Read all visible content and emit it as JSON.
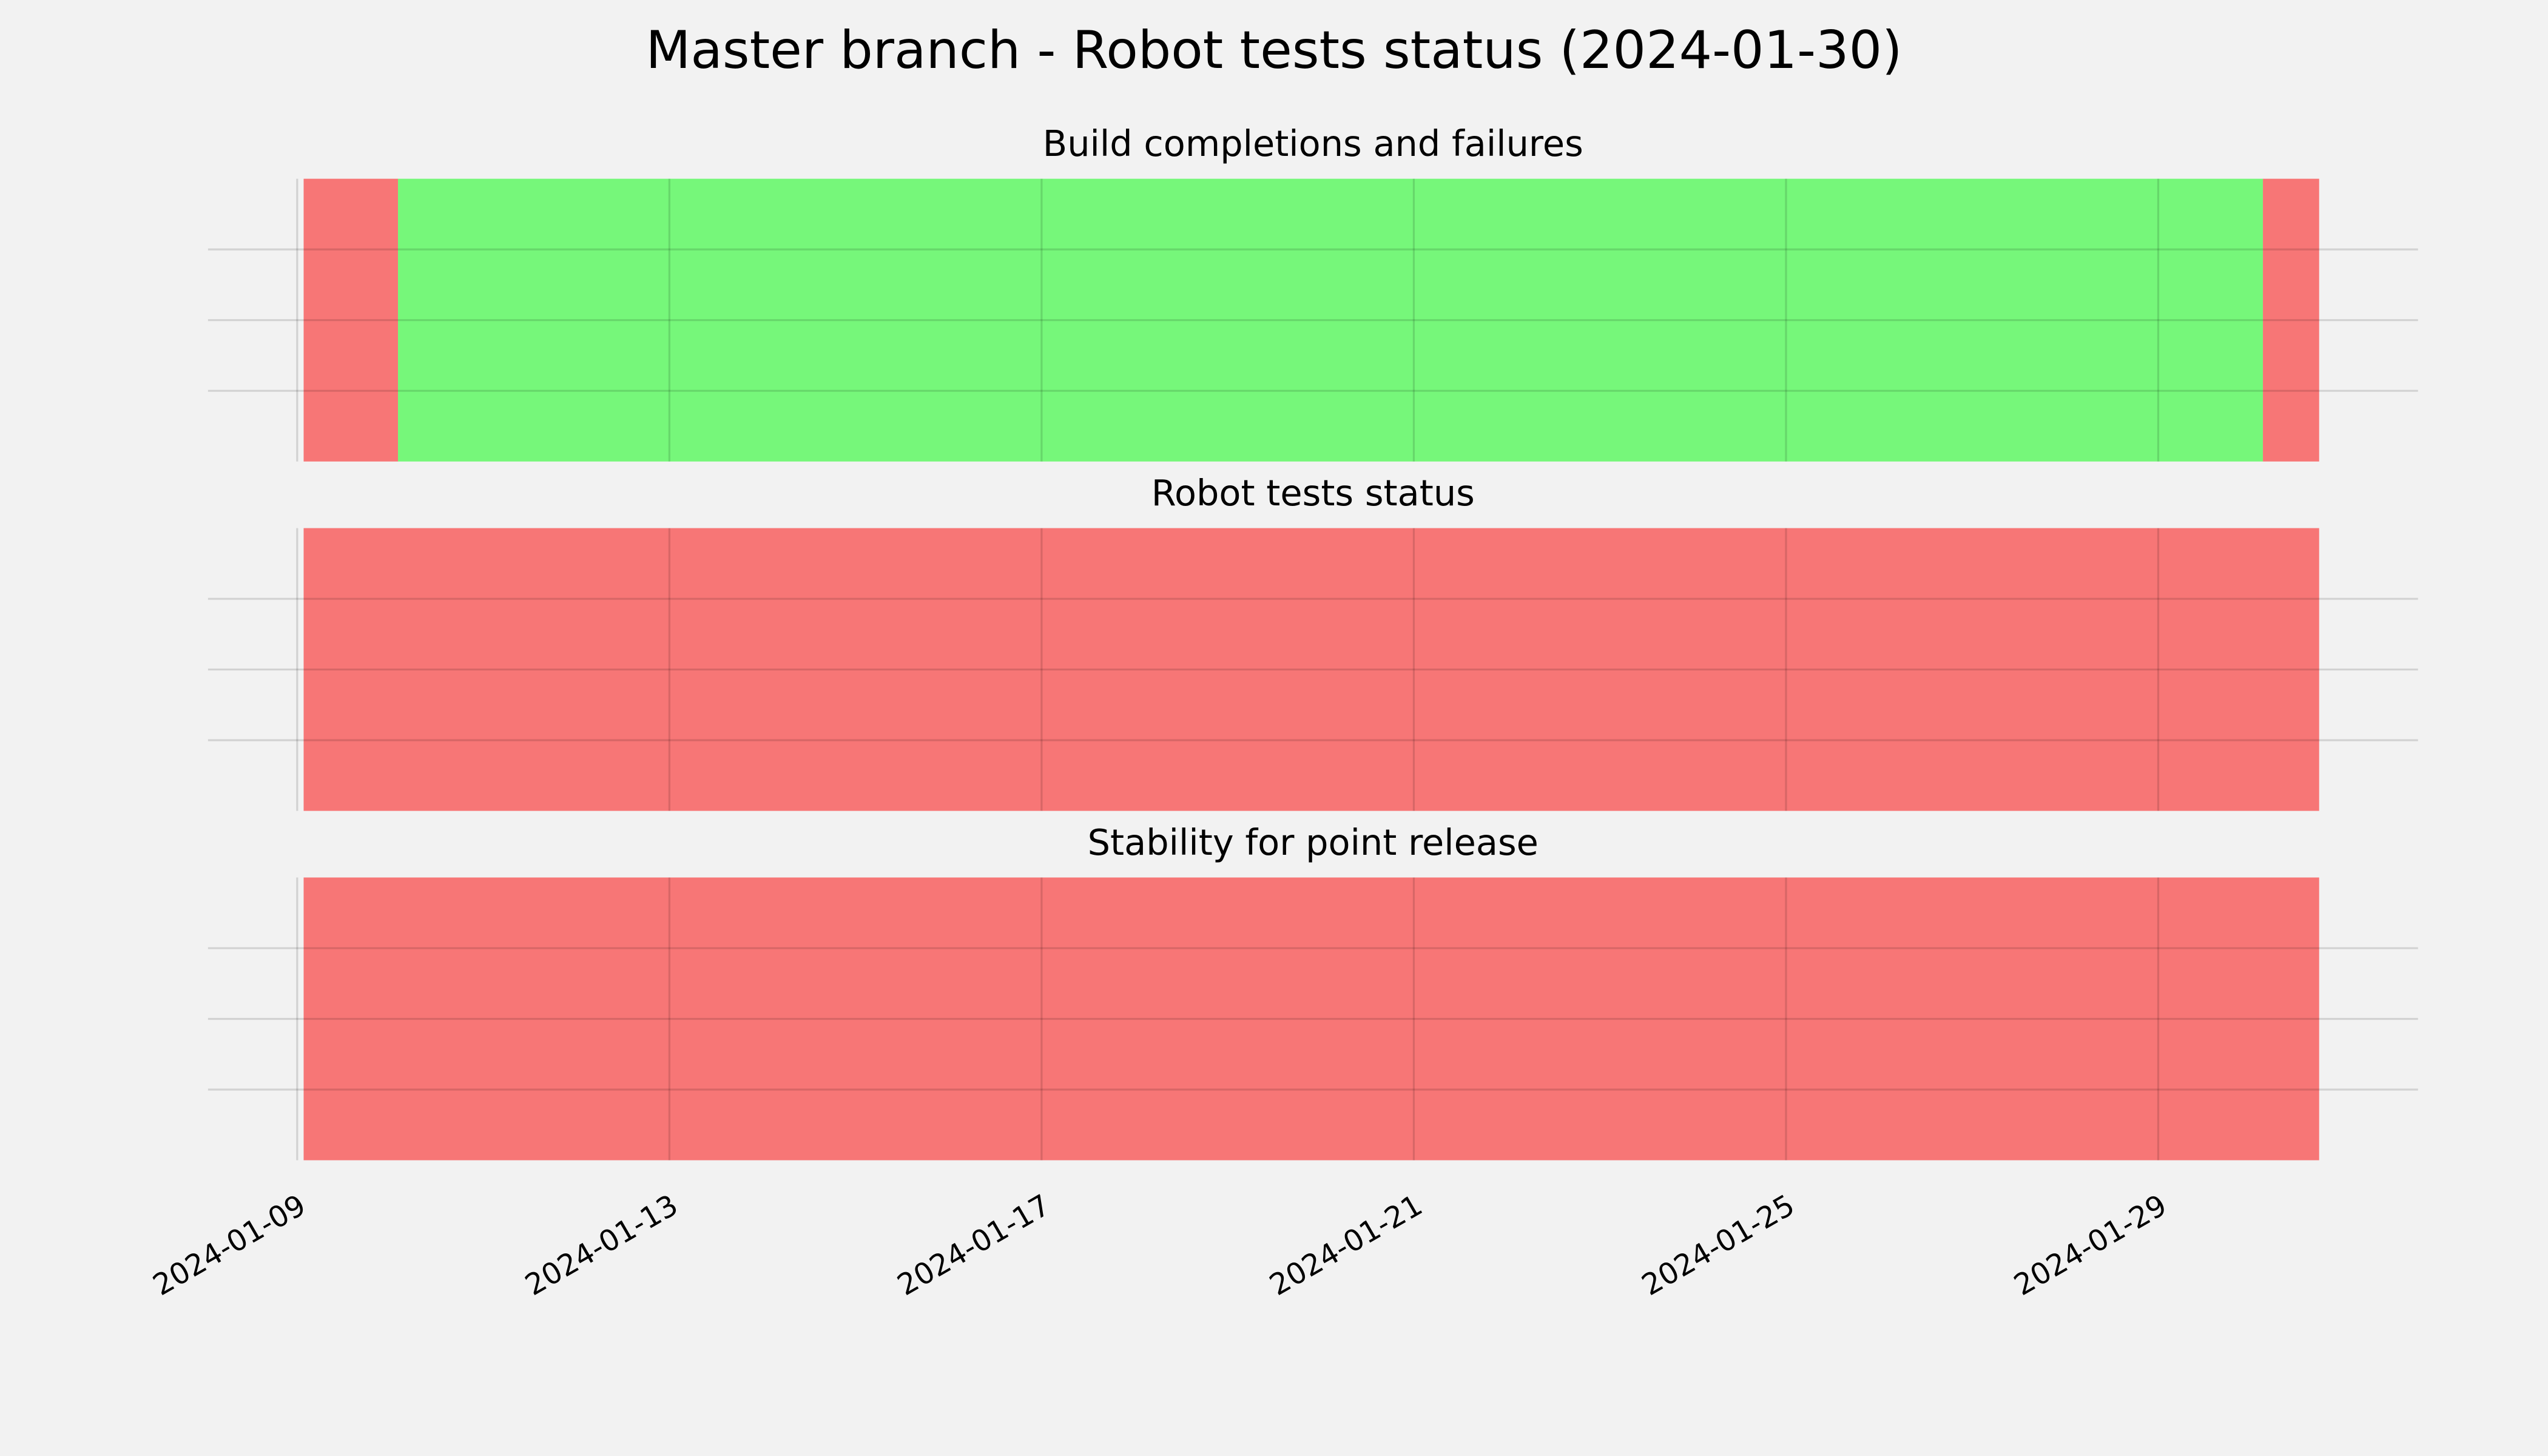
{
  "title": "Master branch - Robot tests status (2024-01-30)",
  "chart_data": [
    {
      "type": "timeline",
      "title": "Build completions and failures",
      "spans": [
        {
          "start": "2024-01-09T01:40",
          "end": "2024-01-10T02:00",
          "color": "#f77676"
        },
        {
          "start": "2024-01-10T02:00",
          "end": "2024-01-30T03:00",
          "color": "#76f77a"
        },
        {
          "start": "2024-01-30T03:00",
          "end": "2024-01-30T17:30",
          "color": "#f77676"
        }
      ],
      "xlim": [
        "2024-01-08T01:00",
        "2024-01-31T19:00"
      ],
      "xticks": [
        "2024-01-09",
        "2024-01-13",
        "2024-01-17",
        "2024-01-21",
        "2024-01-25",
        "2024-01-29"
      ],
      "ylim": [
        0,
        1
      ],
      "yticks": [
        0.25,
        0.5,
        0.75
      ],
      "grid": true,
      "show_xtick_labels": false
    },
    {
      "type": "timeline",
      "title": "Robot tests status",
      "spans": [
        {
          "start": "2024-01-09T01:40",
          "end": "2024-01-30T17:30",
          "color": "#f77676"
        }
      ],
      "xlim": [
        "2024-01-08T01:00",
        "2024-01-31T19:00"
      ],
      "xticks": [
        "2024-01-09",
        "2024-01-13",
        "2024-01-17",
        "2024-01-21",
        "2024-01-25",
        "2024-01-29"
      ],
      "ylim": [
        0,
        1
      ],
      "yticks": [
        0.25,
        0.5,
        0.75
      ],
      "grid": true,
      "show_xtick_labels": false
    },
    {
      "type": "timeline",
      "title": "Stability for point release",
      "spans": [
        {
          "start": "2024-01-09T01:40",
          "end": "2024-01-30T17:30",
          "color": "#f77676"
        }
      ],
      "xlim": [
        "2024-01-08T01:00",
        "2024-01-31T19:00"
      ],
      "xticks": [
        "2024-01-09",
        "2024-01-13",
        "2024-01-17",
        "2024-01-21",
        "2024-01-25",
        "2024-01-29"
      ],
      "ylim": [
        0,
        1
      ],
      "yticks": [
        0.25,
        0.5,
        0.75
      ],
      "grid": true,
      "show_xtick_labels": true
    }
  ]
}
